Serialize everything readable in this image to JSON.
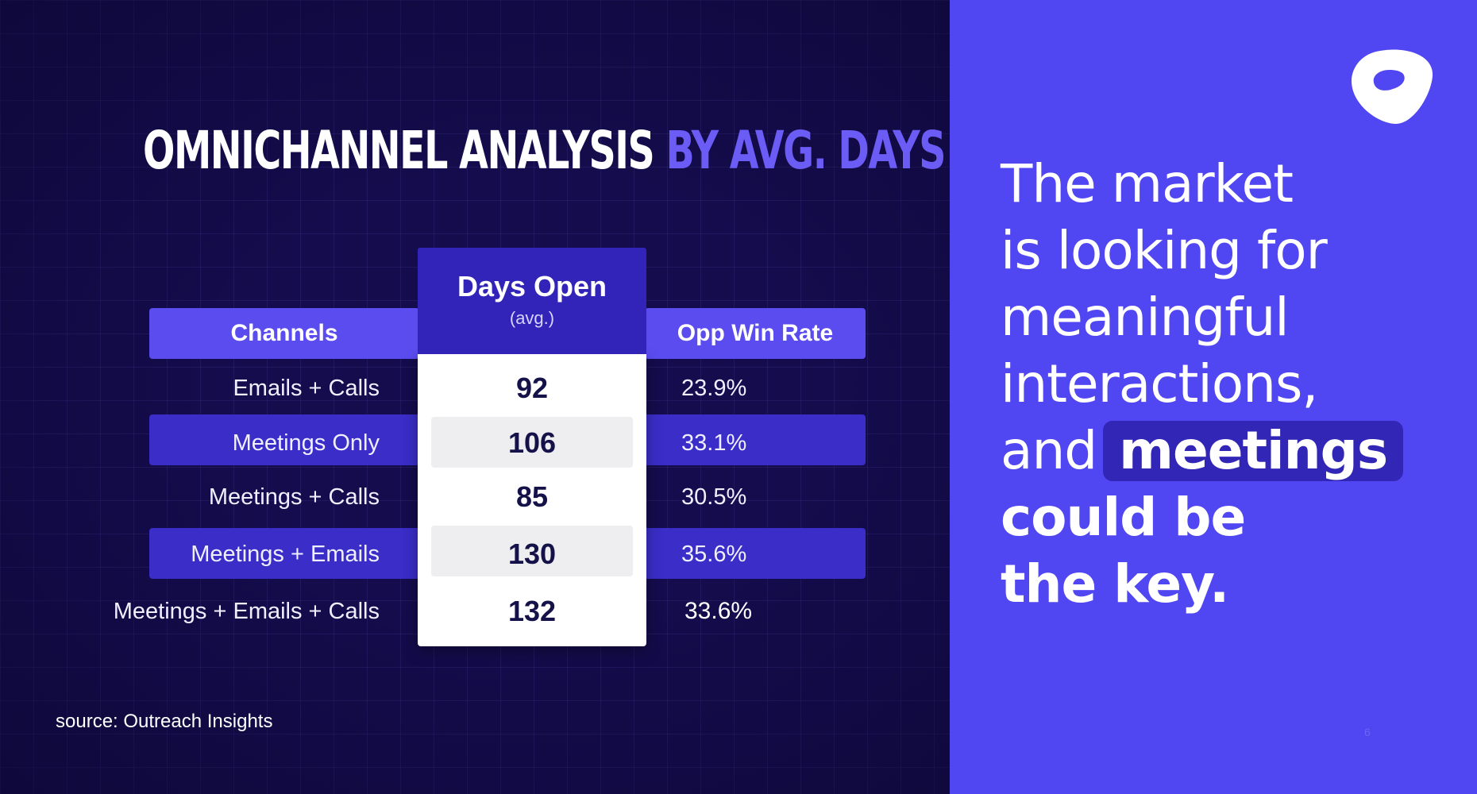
{
  "title": {
    "main": "OMNICHANNEL ANALYSIS",
    "accent": "BY AVG. DAYS"
  },
  "chart_data": {
    "type": "table",
    "columns": [
      {
        "label": "Channels"
      },
      {
        "label": "Days Open",
        "sublabel": "(avg.)"
      },
      {
        "label": "Opp Win Rate"
      }
    ],
    "rows": [
      {
        "channel": "Emails + Calls",
        "days_open": "92",
        "win_rate": "23.9%"
      },
      {
        "channel": "Meetings Only",
        "days_open": "106",
        "win_rate": "33.1%"
      },
      {
        "channel": "Meetings + Calls",
        "days_open": "85",
        "win_rate": "30.5%"
      },
      {
        "channel": "Meetings + Emails",
        "days_open": "130",
        "win_rate": "35.6%"
      },
      {
        "channel": "Meetings + Emails + Calls",
        "days_open": "132",
        "win_rate": "33.6%"
      }
    ]
  },
  "source": "source: Outreach Insights",
  "quote": {
    "line1": "The market",
    "line2": "is looking for",
    "line3": "meaningful",
    "line4": "interactions,",
    "line5_prefix": "and",
    "highlight": "meetings",
    "line6": "could be",
    "line7": "the key."
  },
  "logo_icon": "outreach-logo-icon",
  "page_number": "6",
  "colors": {
    "background_dark": "#140c4c",
    "accent_purple": "#5b4cf0",
    "band_purple": "#3a2dc8",
    "right_panel": "#5046f2",
    "highlight": "#3226b6"
  }
}
